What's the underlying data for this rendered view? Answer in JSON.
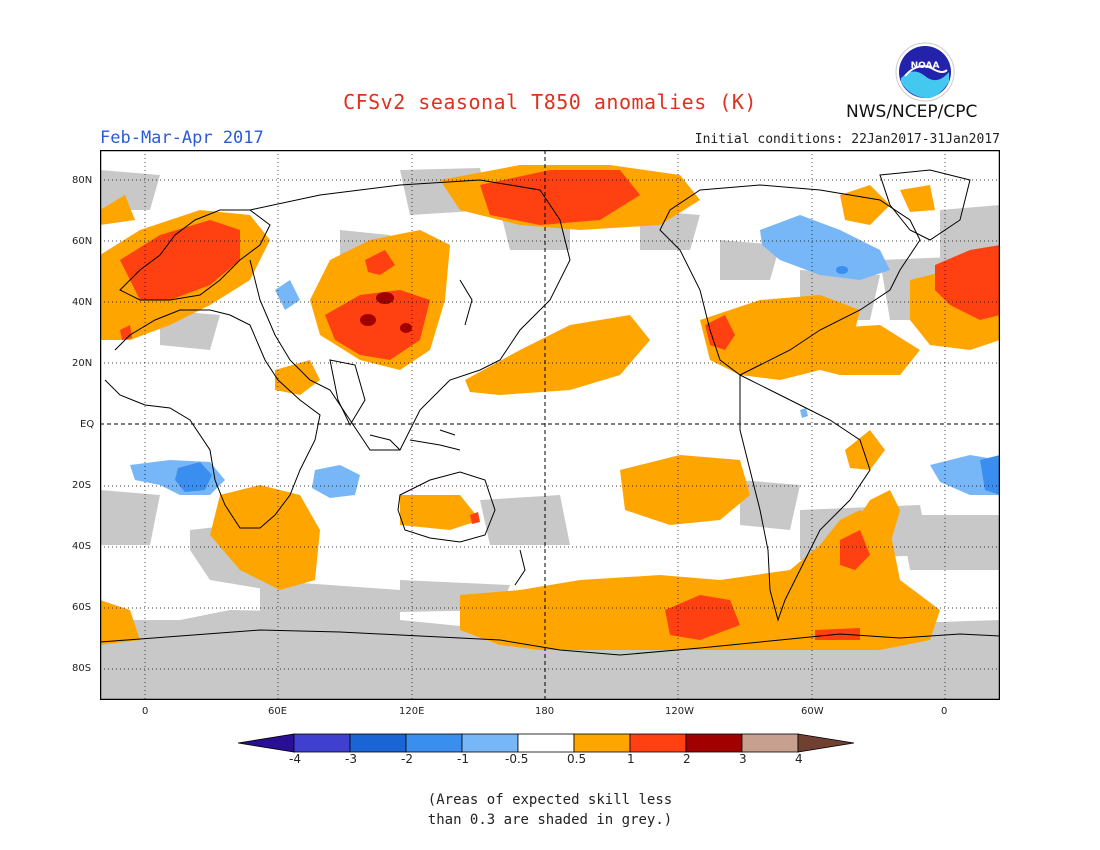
{
  "header": {
    "title": "CFSv2 seasonal T850 anomalies (K)",
    "agency": "NWS/NCEP/CPC",
    "logo_text": "NOAA",
    "period": "Feb-Mar-Apr 2017",
    "initial_conditions": "Initial conditions: 22Jan2017-31Jan2017"
  },
  "axes": {
    "lat_labels": [
      "80N",
      "60N",
      "40N",
      "20N",
      "EQ",
      "20S",
      "40S",
      "60S",
      "80S"
    ],
    "lon_labels": [
      "0",
      "60E",
      "120E",
      "180",
      "120W",
      "60W",
      "0"
    ]
  },
  "colorbar": {
    "labels": [
      "-4",
      "-3",
      "-2",
      "-1",
      "-0.5",
      "0.5",
      "1",
      "2",
      "3",
      "4"
    ],
    "colors": [
      "#2a0f95",
      "#4040d0",
      "#1a64d6",
      "#3a8ef0",
      "#78b7f7",
      "#ffffff",
      "#ffa500",
      "#ff4010",
      "#a00000",
      "#c8a090",
      "#704030"
    ]
  },
  "legend_colors": {
    "grey_low_skill": "#c8c8c8",
    "warm_0_5_1": "#ffa500",
    "warm_1_2": "#ff4010",
    "warm_2_3": "#a00000",
    "cool_0_5_1": "#78b7f7",
    "cool_1_2": "#3a8ef0"
  },
  "footnote": {
    "line1": "(Areas of expected skill less",
    "line2": "than 0.3 are shaded in grey.)"
  }
}
